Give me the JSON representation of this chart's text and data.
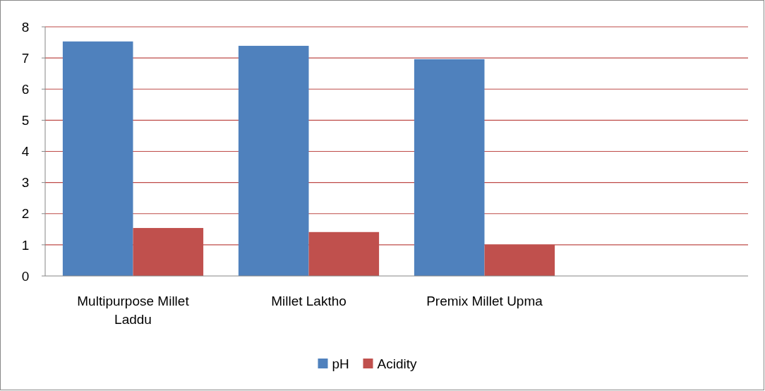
{
  "chart_data": {
    "type": "bar",
    "categories": [
      "Multipurpose Millet Laddu",
      "Millet Laktho",
      "Premix Millet Upma",
      null
    ],
    "series": [
      {
        "name": "pH",
        "color": "#4f81bd",
        "values": [
          7.53,
          7.39,
          6.96,
          null
        ]
      },
      {
        "name": "Acidity",
        "color": "#c0504d",
        "values": [
          1.54,
          1.41,
          1.0,
          null
        ]
      }
    ],
    "ylim": [
      0,
      8
    ],
    "yticks": [
      0,
      1,
      2,
      3,
      4,
      5,
      6,
      7,
      8
    ],
    "grid": "y",
    "legend": "bottom"
  }
}
